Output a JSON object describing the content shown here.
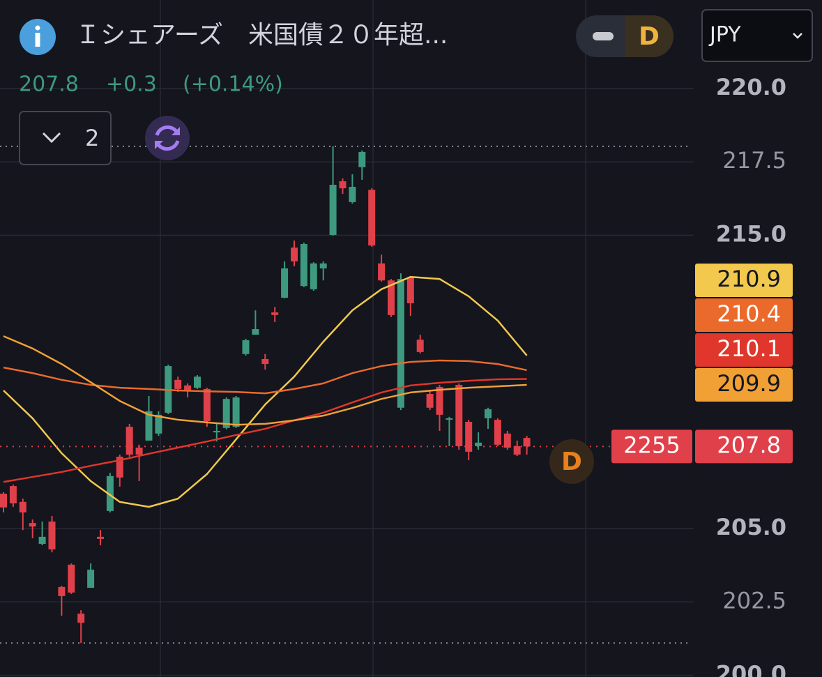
{
  "header": {
    "title": "Ｉシェアーズ　米国債２０年超...",
    "change": "+0.3",
    "change_pct": "(+0.14%)",
    "toggle_label": "D",
    "currency": "JPY",
    "collapse_count": 2
  },
  "chart_data": {
    "type": "candlestick",
    "ylim": [
      199.94,
      223.02
    ],
    "yticks": [
      {
        "value": 200,
        "label": "200.0"
      },
      {
        "value": 202.5,
        "label": "202.5"
      },
      {
        "value": 205,
        "label": "205.0"
      },
      {
        "value": 215,
        "label": "215.0"
      },
      {
        "value": 217.5,
        "label": "217.5"
      },
      {
        "value": 220,
        "label": "220.0"
      }
    ],
    "grid": true,
    "up_color": "#3d9a7e",
    "down_color": "#e0404a",
    "open": [
      206.19,
      206.45,
      205.91,
      205.19,
      204.48,
      205.24,
      203.01,
      203.77,
      202.1,
      202.98,
      204.72,
      205.6,
      207.45,
      208.47,
      207.76,
      208.0,
      208.24,
      208.95,
      210.07,
      209.88,
      209.8,
      209.76,
      208.28,
      208.43,
      208.47,
      210.95,
      211.61,
      210.78,
      212.37,
      212.87,
      214.58,
      213.27,
      213.16,
      213.87,
      215.01,
      216.84,
      216.13,
      217.32,
      216.55,
      214.04,
      213.46,
      209.12,
      213.56,
      211.44,
      209.59,
      209.83,
      208.71,
      209.9,
      208.64,
      207.81,
      208.76,
      208.71,
      208.24,
      207.81,
      208.09
    ],
    "high": [
      206.24,
      206.5,
      206.02,
      205.31,
      205.24,
      205.43,
      203.05,
      203.81,
      202.22,
      203.81,
      204.95,
      206.9,
      207.52,
      208.57,
      207.86,
      209.52,
      209.0,
      210.59,
      210.18,
      209.95,
      210.23,
      209.8,
      208.57,
      209.47,
      209.52,
      211.47,
      212.44,
      210.95,
      212.56,
      214.11,
      214.82,
      214.75,
      214.08,
      214.11,
      218.03,
      216.94,
      217.08,
      217.89,
      216.6,
      214.34,
      213.51,
      213.7,
      213.61,
      211.61,
      209.71,
      209.9,
      208.81,
      209.95,
      208.71,
      208.28,
      209.12,
      208.76,
      208.33,
      208.0,
      208.16
    ],
    "low": [
      205.55,
      205.74,
      204.95,
      204.67,
      204.43,
      204.19,
      202.03,
      202.77,
      201.1,
      202.98,
      204.43,
      205.55,
      206.43,
      207.45,
      206.62,
      208.0,
      208.16,
      208.9,
      209.66,
      209.47,
      209.76,
      208.47,
      207.97,
      208.38,
      208.43,
      210.9,
      211.61,
      210.42,
      212.04,
      212.85,
      213.94,
      213.23,
      213.11,
      213.46,
      214.99,
      216.41,
      216.08,
      216.89,
      214.61,
      213.42,
      212.21,
      209.04,
      212.25,
      210.97,
      209.04,
      208.33,
      207.81,
      207.69,
      207.33,
      207.69,
      208.4,
      207.81,
      207.69,
      207.47,
      207.52
    ],
    "close": [
      205.72,
      205.86,
      205.55,
      205.07,
      204.72,
      204.29,
      202.7,
      202.82,
      201.79,
      203.6,
      204.65,
      206.79,
      206.74,
      207.52,
      207.52,
      209.0,
      208.88,
      210.54,
      209.76,
      209.71,
      210.18,
      208.66,
      208.33,
      209.42,
      209.47,
      211.42,
      211.8,
      210.61,
      212.28,
      213.87,
      214.11,
      214.7,
      214.04,
      214.04,
      216.72,
      216.6,
      216.65,
      217.84,
      214.65,
      213.46,
      212.28,
      213.51,
      212.68,
      211.02,
      209.12,
      208.88,
      208.76,
      207.81,
      207.62,
      207.93,
      209.07,
      207.86,
      207.76,
      207.52,
      207.8
    ],
    "series": [
      {
        "color": "#f2c94c",
        "x": [
          0,
          3,
          6,
          9,
          12,
          15,
          18,
          21,
          24,
          27,
          30,
          33,
          36,
          39,
          42,
          45,
          48,
          51,
          54
        ],
        "values": [
          209.71,
          208.76,
          207.57,
          206.62,
          205.91,
          205.74,
          206.02,
          206.86,
          208.04,
          209.23,
          210.18,
          211.37,
          212.44,
          213.16,
          213.58,
          213.51,
          212.92,
          212.09,
          210.9
        ]
      },
      {
        "color": "#ea6a2c",
        "x": [
          0,
          3,
          6,
          9,
          12,
          15,
          18,
          21,
          24,
          27,
          30,
          33,
          36,
          39,
          42,
          45,
          48,
          51,
          54
        ],
        "values": [
          210.49,
          210.3,
          210.07,
          209.9,
          209.8,
          209.76,
          209.71,
          209.68,
          209.66,
          209.61,
          209.76,
          209.95,
          210.3,
          210.54,
          210.68,
          210.73,
          210.71,
          210.61,
          210.4
        ]
      },
      {
        "color": "#e0362b",
        "x": [
          0,
          3,
          6,
          9,
          12,
          15,
          18,
          21,
          24,
          27,
          30,
          33,
          36,
          39,
          42,
          45,
          48,
          51,
          54
        ],
        "values": [
          206.59,
          206.76,
          206.93,
          207.14,
          207.33,
          207.55,
          207.76,
          207.97,
          208.19,
          208.4,
          208.69,
          208.95,
          209.3,
          209.64,
          209.88,
          209.97,
          210.04,
          210.09,
          210.1
        ]
      },
      {
        "color": "#f0a035",
        "x": [
          0,
          3,
          6,
          9,
          12,
          15,
          18,
          21,
          24,
          27,
          30,
          33,
          36,
          39,
          42,
          45,
          48,
          51,
          54
        ],
        "values": [
          211.56,
          211.14,
          210.61,
          209.99,
          209.35,
          208.88,
          208.71,
          208.62,
          208.54,
          208.57,
          208.69,
          208.85,
          209.11,
          209.42,
          209.64,
          209.73,
          209.8,
          209.85,
          209.9
        ]
      }
    ],
    "last_price_tag": "2255",
    "marker_label": "D"
  }
}
